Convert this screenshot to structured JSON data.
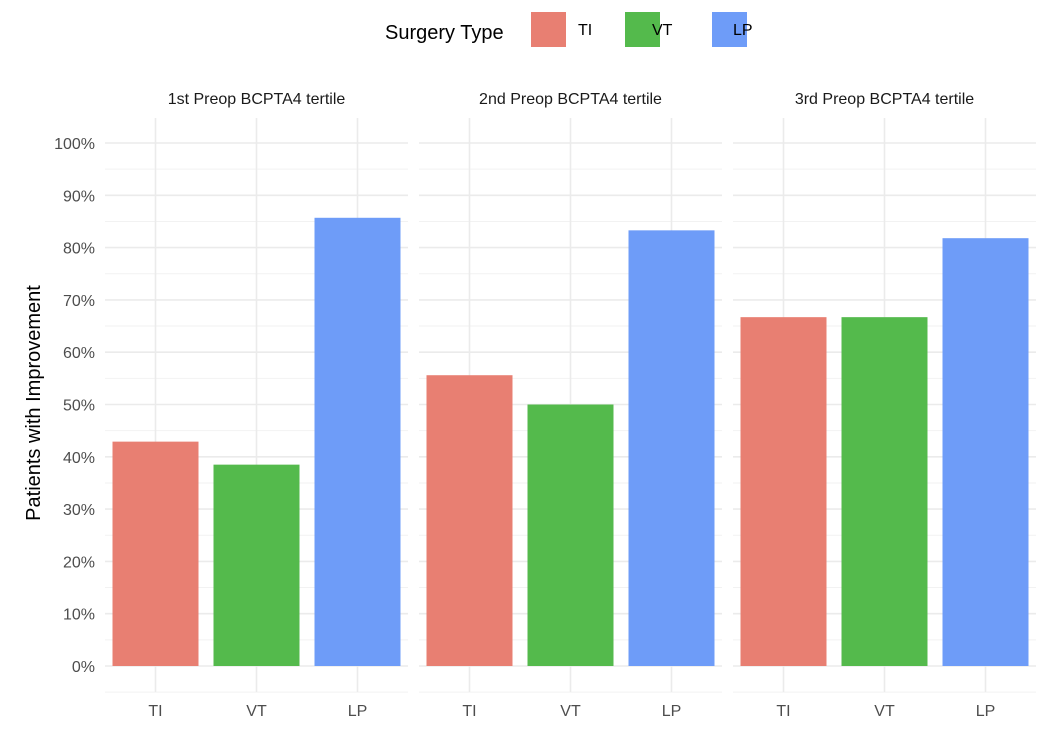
{
  "chart_data": {
    "type": "bar",
    "legend": {
      "title": "Surgery Type",
      "position": "top",
      "entries": [
        {
          "label": "TI",
          "color": "#E87F72"
        },
        {
          "label": "VT",
          "color": "#54BA4C"
        },
        {
          "label": "LP",
          "color": "#6E9CF8"
        }
      ]
    },
    "ylabel": "Patients with Improvement",
    "xlabel": "",
    "ylim": [
      0,
      100
    ],
    "y_ticks": [
      "0%",
      "10%",
      "20%",
      "30%",
      "40%",
      "50%",
      "60%",
      "70%",
      "80%",
      "90%",
      "100%"
    ],
    "grid": true,
    "categories": [
      "TI",
      "VT",
      "LP"
    ],
    "colors": [
      "#E87F72",
      "#54BA4C",
      "#6E9CF8"
    ],
    "facets": [
      {
        "title": "1st Preop BCPTA4 tertile",
        "values": [
          42.9,
          38.5,
          85.7
        ]
      },
      {
        "title": "2nd Preop BCPTA4 tertile",
        "values": [
          55.6,
          50.0,
          83.3
        ]
      },
      {
        "title": "3rd Preop BCPTA4 tertile",
        "values": [
          66.7,
          66.7,
          81.8
        ]
      }
    ]
  }
}
